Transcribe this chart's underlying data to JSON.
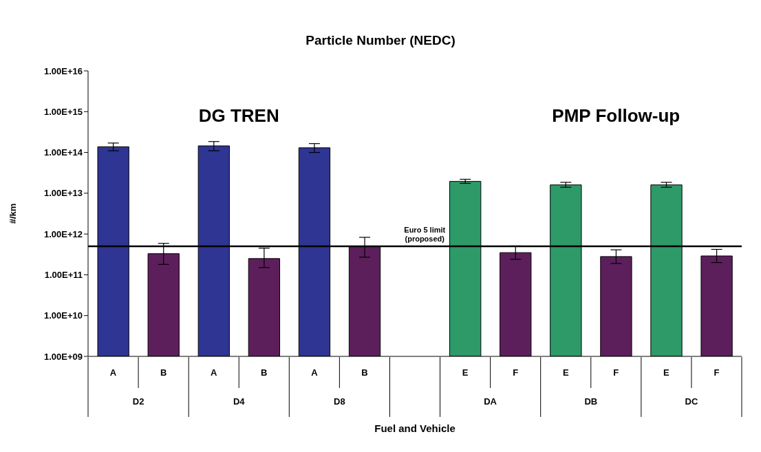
{
  "chart_data": {
    "type": "bar",
    "title": "Particle Number (NEDC)",
    "xlabel": "Fuel and Vehicle",
    "ylabel": "#/km",
    "categories": [
      "A",
      "B",
      "A",
      "B",
      "A",
      "B",
      null,
      "E",
      "F",
      "E",
      "F",
      "E",
      "F"
    ],
    "values": [
      138000000000000.0,
      330000000000.0,
      145000000000000.0,
      250000000000.0,
      130000000000000.0,
      490000000000.0,
      null,
      19500000000000.0,
      350000000000.0,
      16000000000000.0,
      280000000000.0,
      16000000000000.0,
      290000000000.0
    ],
    "errors": [
      [
        110000000000000.0,
        170000000000000.0
      ],
      [
        180000000000.0,
        590000000000.0
      ],
      [
        110000000000000.0,
        185000000000000.0
      ],
      [
        150000000000.0,
        450000000000.0
      ],
      [
        100000000000000.0,
        165000000000000.0
      ],
      [
        270000000000.0,
        830000000000.0
      ],
      null,
      [
        17500000000000.0,
        22000000000000.0
      ],
      [
        240000000000.0,
        510000000000.0
      ],
      [
        14000000000000.0,
        18500000000000.0
      ],
      [
        190000000000.0,
        410000000000.0
      ],
      [
        14000000000000.0,
        18500000000000.0
      ],
      [
        200000000000.0,
        420000000000.0
      ]
    ],
    "colors": [
      "#2e3592",
      "#5c1f5c",
      "#2e3592",
      "#5c1f5c",
      "#2e3592",
      "#5c1f5c",
      "#ffffff",
      "#2e9a68",
      "#5c1f5c",
      "#2e9a68",
      "#5c1f5c",
      "#2e9a68",
      "#5c1f5c"
    ],
    "log": "y",
    "ylim": [
      1000000000.0,
      1e+16
    ],
    "yticks": [
      {
        "value": 1000000000.0,
        "label": "1.00E+09"
      },
      {
        "value": 10000000000.0,
        "label": "1.00E+10"
      },
      {
        "value": 100000000000.0,
        "label": "1.00E+11"
      },
      {
        "value": 1000000000000.0,
        "label": "1.00E+12"
      },
      {
        "value": 10000000000000.0,
        "label": "1.00E+13"
      },
      {
        "value": 100000000000000.0,
        "label": "1.00E+14"
      },
      {
        "value": 1000000000000000.0,
        "label": "1.00E+15"
      },
      {
        "value": 1e+16,
        "label": "1.00E+16"
      }
    ],
    "grid": false,
    "legend": false,
    "ref_lines": [
      {
        "axis": "y",
        "value": 500000000000.0,
        "label": "Euro 5 limit (proposed)",
        "color": "#000000"
      }
    ],
    "annotations": [
      "DG TREN",
      "PMP Follow-up",
      "D2",
      "D4",
      "D8",
      "DA",
      "DB",
      "DC"
    ]
  }
}
